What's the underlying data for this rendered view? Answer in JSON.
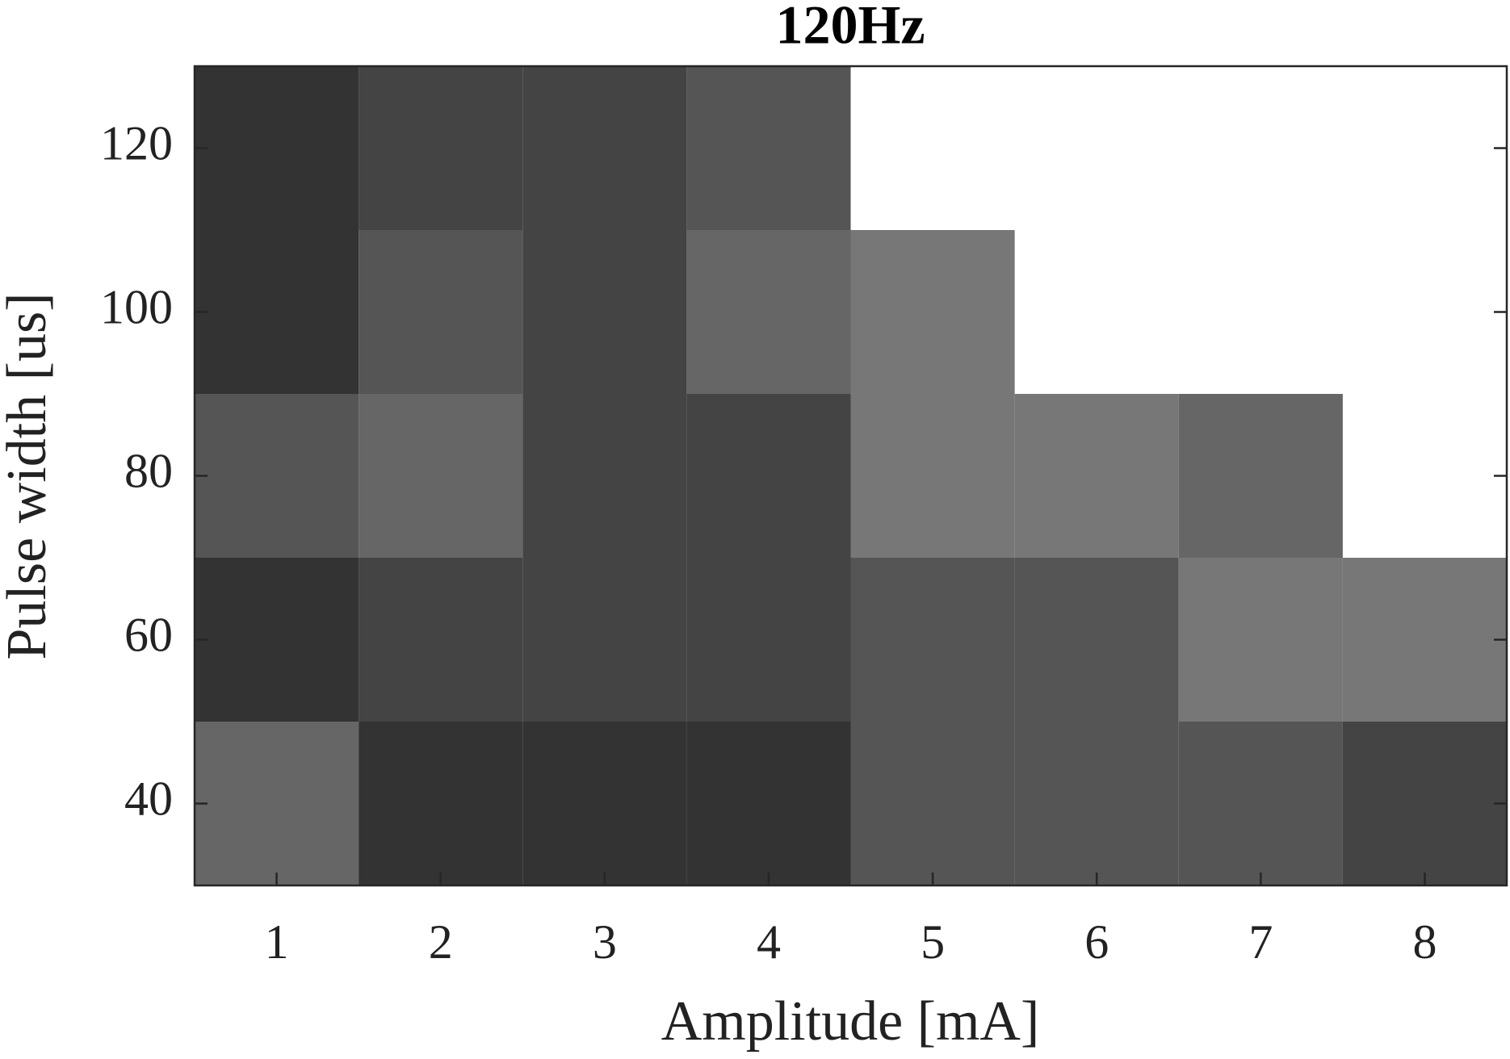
{
  "chart_data": {
    "type": "heatmap",
    "title": "120Hz",
    "x_label": "Amplitude [mA]",
    "y_label": "Pulse width [us]",
    "x": [
      1,
      2,
      3,
      4,
      5,
      6,
      7,
      8
    ],
    "y": [
      40,
      60,
      80,
      100,
      120
    ],
    "z": [
      [
        3,
        0,
        0,
        0,
        2,
        2,
        2,
        1
      ],
      [
        0,
        1,
        1,
        1,
        2,
        2,
        4,
        4
      ],
      [
        2,
        3,
        1,
        1,
        4,
        4,
        3,
        null
      ],
      [
        0,
        2,
        1,
        3,
        4,
        null,
        null,
        null
      ],
      [
        0,
        1,
        1,
        2,
        null,
        null,
        null,
        null
      ]
    ],
    "colormap": [
      "#333333",
      "#444444",
      "#555555",
      "#666666",
      "#777777"
    ],
    "xlim": [
      0.5,
      8.5
    ],
    "xticks": [
      1,
      2,
      3,
      4,
      5,
      6,
      7,
      8
    ],
    "ylim": [
      30,
      130
    ],
    "yticks": [
      40,
      60,
      80,
      100,
      120
    ]
  }
}
